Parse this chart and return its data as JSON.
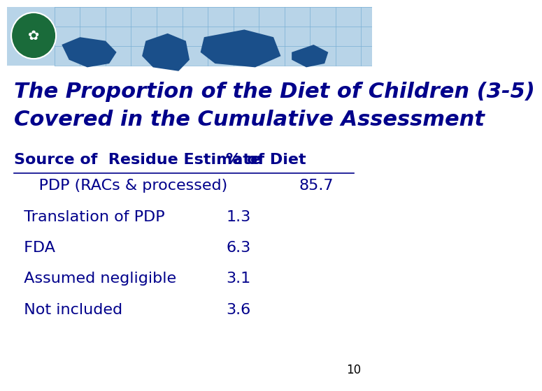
{
  "title_line1": "The Proportion of the Diet of Children (3-5)",
  "title_line2": "Covered in the Cumulative Assessment",
  "header_col1": "Source of  Residue Estimate",
  "header_col2": "% of Diet",
  "rows": [
    {
      "label": "     PDP (RACs & processed)",
      "value": "85.7",
      "indent": false
    },
    {
      "label": "  Translation of PDP",
      "value": "1.3",
      "indent": false
    },
    {
      "label": "  FDA",
      "value": "6.3",
      "indent": false
    },
    {
      "label": "  Assumed negligible",
      "value": "3.1",
      "indent": false
    },
    {
      "label": "  Not included",
      "value": "3.6",
      "indent": false
    }
  ],
  "page_number": "10",
  "bg_color": "#ffffff",
  "text_color": "#00008B",
  "header_banner_color": "#add8e6",
  "title_font_size": 22,
  "header_font_size": 16,
  "row_font_size": 16,
  "page_num_font_size": 12
}
